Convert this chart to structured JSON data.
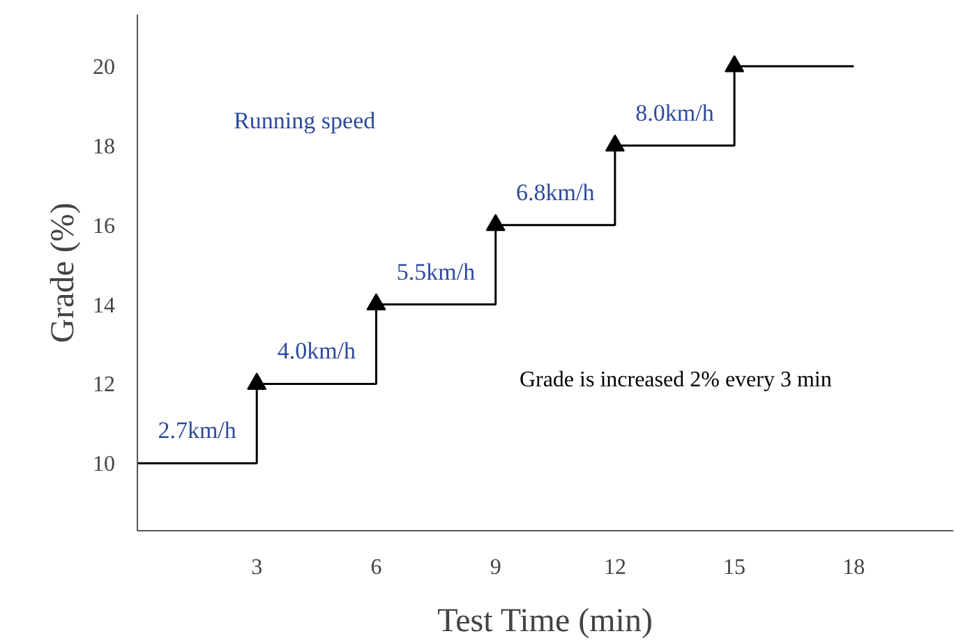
{
  "chart_data": {
    "type": "step",
    "xlabel": "Test Time (min)",
    "ylabel": "Grade (%)",
    "x": [
      0,
      3,
      6,
      9,
      12,
      15,
      18
    ],
    "series": [
      {
        "color": "#000000",
        "values": [
          10,
          12,
          14,
          16,
          18,
          20,
          20
        ]
      },
      {
        "type": "scatter",
        "color": "#000000",
        "marker": "triangle",
        "x": [
          3,
          6,
          9,
          12,
          15
        ],
        "values": [
          12,
          14,
          16,
          18,
          20
        ]
      }
    ],
    "xlim": [
      0,
      20.5
    ],
    "ylim": [
      8.3,
      21.3
    ],
    "xticks": [
      3,
      6,
      9,
      12,
      15,
      18
    ],
    "yticks": [
      10,
      12,
      14,
      16,
      18,
      20
    ],
    "grid": false,
    "annotations": [
      {
        "text": "2.7km/h",
        "x": 1.5,
        "y": 10
      },
      {
        "text": "4.0km/h",
        "x": 4.5,
        "y": 12
      },
      {
        "text": "5.5km/h",
        "x": 7.5,
        "y": 14
      },
      {
        "text": "6.8km/h",
        "x": 10.5,
        "y": 16
      },
      {
        "text": "8.0km/h",
        "x": 13.5,
        "y": 18
      },
      "Running speed",
      "Grade is increased 2% every 3 min"
    ]
  }
}
